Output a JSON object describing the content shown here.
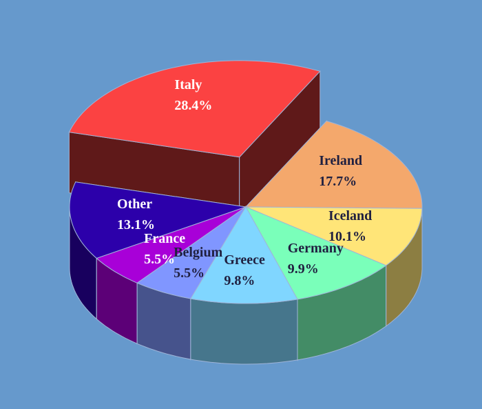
{
  "chart_data": {
    "type": "pie",
    "categories": [
      "Italy",
      "Ireland",
      "Iceland",
      "Germany",
      "Greece",
      "Belgium",
      "France",
      "Other"
    ],
    "values": [
      28.4,
      17.7,
      10.1,
      9.9,
      9.8,
      5.5,
      5.5,
      13.1
    ],
    "value_labels": [
      "28.4%",
      "17.7%",
      "10.1%",
      "9.9%",
      "9.8%",
      "5.5%",
      "5.5%",
      "13.1%"
    ],
    "colors": [
      "#fb4242",
      "#f4a86c",
      "#ffe578",
      "#7affba",
      "#80d6ff",
      "#8096ff",
      "#a800d8",
      "#2c00aa"
    ],
    "explode": [
      0.45,
      0,
      0,
      0,
      0,
      0,
      0,
      0
    ]
  }
}
